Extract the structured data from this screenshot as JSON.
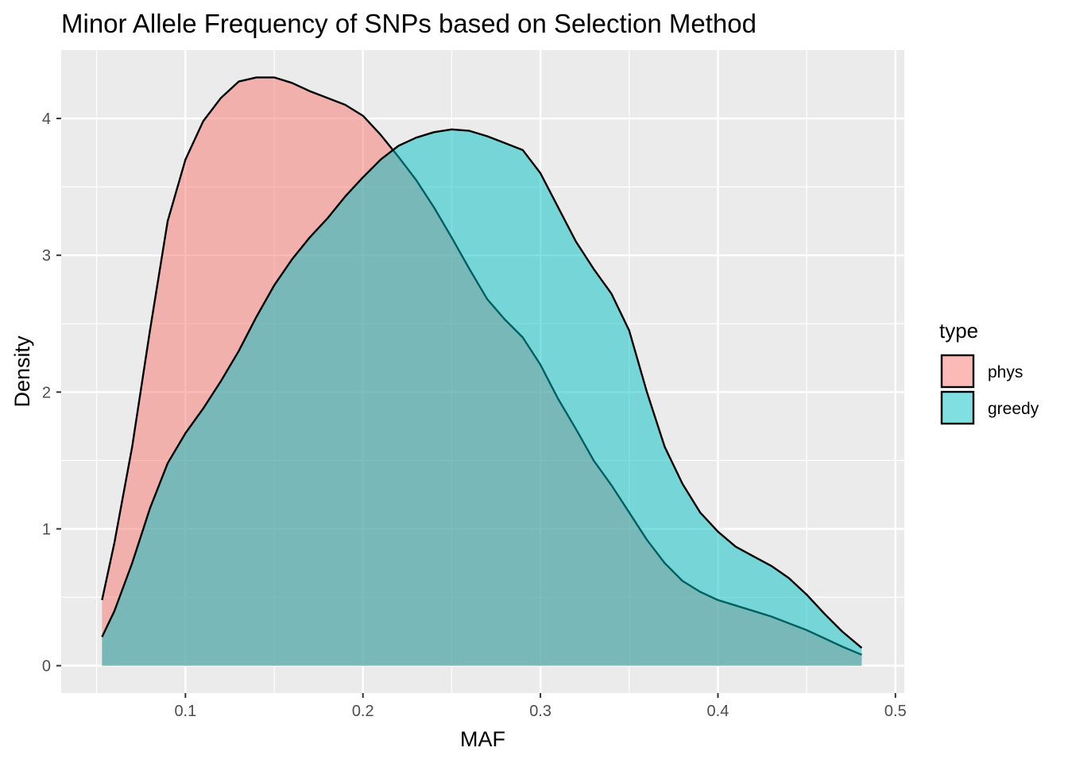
{
  "chart_data": {
    "type": "area",
    "subtype": "density",
    "title": "Minor Allele Frequency of SNPs based on Selection Method",
    "xlabel": "MAF",
    "ylabel": "Density",
    "xlim": [
      0.03,
      0.505
    ],
    "ylim": [
      -0.2,
      4.5
    ],
    "x_ticks": [
      0.1,
      0.2,
      0.3,
      0.4,
      0.5
    ],
    "x_tick_labels": [
      "0.1",
      "0.2",
      "0.3",
      "0.4",
      "0.5"
    ],
    "y_ticks": [
      0,
      1,
      2,
      3,
      4
    ],
    "y_tick_labels": [
      "0",
      "1",
      "2",
      "3",
      "4"
    ],
    "grid": true,
    "panel_background": "#ebebeb",
    "legend": {
      "title": "type",
      "position": "right",
      "entries": [
        "phys",
        "greedy"
      ]
    },
    "series": [
      {
        "name": "phys",
        "color": "#f8766d",
        "fill_alpha": 0.5,
        "points": [
          [
            0.053,
            0.48
          ],
          [
            0.06,
            0.9
          ],
          [
            0.07,
            1.6
          ],
          [
            0.08,
            2.45
          ],
          [
            0.09,
            3.25
          ],
          [
            0.1,
            3.7
          ],
          [
            0.11,
            3.98
          ],
          [
            0.12,
            4.15
          ],
          [
            0.13,
            4.27
          ],
          [
            0.14,
            4.3
          ],
          [
            0.15,
            4.3
          ],
          [
            0.16,
            4.26
          ],
          [
            0.17,
            4.2
          ],
          [
            0.18,
            4.15
          ],
          [
            0.19,
            4.1
          ],
          [
            0.2,
            4.02
          ],
          [
            0.21,
            3.88
          ],
          [
            0.22,
            3.72
          ],
          [
            0.23,
            3.55
          ],
          [
            0.24,
            3.35
          ],
          [
            0.25,
            3.13
          ],
          [
            0.26,
            2.9
          ],
          [
            0.27,
            2.68
          ],
          [
            0.28,
            2.53
          ],
          [
            0.29,
            2.4
          ],
          [
            0.3,
            2.2
          ],
          [
            0.31,
            1.95
          ],
          [
            0.32,
            1.73
          ],
          [
            0.33,
            1.5
          ],
          [
            0.34,
            1.32
          ],
          [
            0.35,
            1.12
          ],
          [
            0.36,
            0.92
          ],
          [
            0.37,
            0.75
          ],
          [
            0.38,
            0.62
          ],
          [
            0.39,
            0.54
          ],
          [
            0.4,
            0.48
          ],
          [
            0.41,
            0.44
          ],
          [
            0.42,
            0.4
          ],
          [
            0.43,
            0.36
          ],
          [
            0.44,
            0.31
          ],
          [
            0.45,
            0.26
          ],
          [
            0.46,
            0.2
          ],
          [
            0.47,
            0.14
          ],
          [
            0.481,
            0.08
          ]
        ]
      },
      {
        "name": "greedy",
        "color": "#00bfc4",
        "fill_alpha": 0.5,
        "points": [
          [
            0.053,
            0.21
          ],
          [
            0.06,
            0.4
          ],
          [
            0.07,
            0.75
          ],
          [
            0.08,
            1.15
          ],
          [
            0.09,
            1.48
          ],
          [
            0.1,
            1.7
          ],
          [
            0.11,
            1.88
          ],
          [
            0.12,
            2.08
          ],
          [
            0.13,
            2.3
          ],
          [
            0.14,
            2.55
          ],
          [
            0.15,
            2.78
          ],
          [
            0.16,
            2.97
          ],
          [
            0.17,
            3.13
          ],
          [
            0.18,
            3.27
          ],
          [
            0.19,
            3.43
          ],
          [
            0.2,
            3.57
          ],
          [
            0.21,
            3.7
          ],
          [
            0.22,
            3.8
          ],
          [
            0.23,
            3.86
          ],
          [
            0.24,
            3.9
          ],
          [
            0.25,
            3.92
          ],
          [
            0.26,
            3.91
          ],
          [
            0.27,
            3.87
          ],
          [
            0.28,
            3.82
          ],
          [
            0.29,
            3.77
          ],
          [
            0.3,
            3.6
          ],
          [
            0.31,
            3.35
          ],
          [
            0.32,
            3.1
          ],
          [
            0.33,
            2.9
          ],
          [
            0.34,
            2.72
          ],
          [
            0.35,
            2.45
          ],
          [
            0.36,
            2.0
          ],
          [
            0.37,
            1.6
          ],
          [
            0.38,
            1.33
          ],
          [
            0.39,
            1.12
          ],
          [
            0.4,
            0.98
          ],
          [
            0.41,
            0.87
          ],
          [
            0.42,
            0.8
          ],
          [
            0.43,
            0.73
          ],
          [
            0.44,
            0.64
          ],
          [
            0.45,
            0.52
          ],
          [
            0.46,
            0.38
          ],
          [
            0.47,
            0.25
          ],
          [
            0.481,
            0.13
          ]
        ]
      }
    ]
  }
}
